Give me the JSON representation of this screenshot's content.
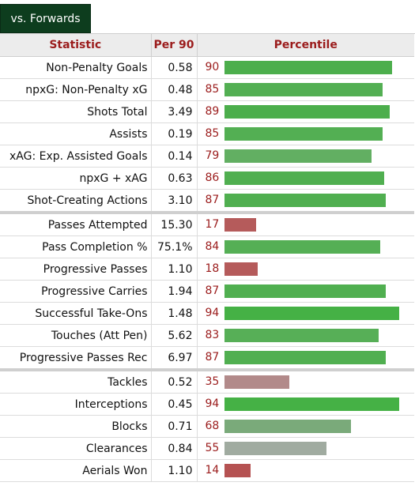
{
  "tabs": [
    {
      "label": "vs. Forwards",
      "active": true
    }
  ],
  "table": {
    "headers": {
      "statistic": "Statistic",
      "per90": "Per 90",
      "percentile": "Percentile"
    },
    "groups": [
      {
        "rows": [
          {
            "stat": "Non-Penalty Goals",
            "per90": "0.58",
            "percentile": 90,
            "color": "#4cae4c"
          },
          {
            "stat": "npxG: Non-Penalty xG",
            "per90": "0.48",
            "percentile": 85,
            "color": "#53af53"
          },
          {
            "stat": "Shots Total",
            "per90": "3.49",
            "percentile": 89,
            "color": "#4cae4c"
          },
          {
            "stat": "Assists",
            "per90": "0.19",
            "percentile": 85,
            "color": "#53af53"
          },
          {
            "stat": "xAG: Exp. Assisted Goals",
            "per90": "0.14",
            "percentile": 79,
            "color": "#62af62"
          },
          {
            "stat": "npxG + xAG",
            "per90": "0.63",
            "percentile": 86,
            "color": "#50af50"
          },
          {
            "stat": "Shot-Creating Actions",
            "per90": "3.10",
            "percentile": 87,
            "color": "#50af50"
          }
        ]
      },
      {
        "rows": [
          {
            "stat": "Passes Attempted",
            "per90": "15.30",
            "percentile": 17,
            "color": "#b55b5b"
          },
          {
            "stat": "Pass Completion %",
            "per90": "75.1%",
            "percentile": 84,
            "color": "#55af55"
          },
          {
            "stat": "Progressive Passes",
            "per90": "1.10",
            "percentile": 18,
            "color": "#b55b5b"
          },
          {
            "stat": "Progressive Carries",
            "per90": "1.94",
            "percentile": 87,
            "color": "#50af50"
          },
          {
            "stat": "Successful Take-Ons",
            "per90": "1.48",
            "percentile": 94,
            "color": "#45b145"
          },
          {
            "stat": "Touches (Att Pen)",
            "per90": "5.62",
            "percentile": 83,
            "color": "#57af57"
          },
          {
            "stat": "Progressive Passes Rec",
            "per90": "6.97",
            "percentile": 87,
            "color": "#50af50"
          }
        ]
      },
      {
        "rows": [
          {
            "stat": "Tackles",
            "per90": "0.52",
            "percentile": 35,
            "color": "#b28a8a"
          },
          {
            "stat": "Interceptions",
            "per90": "0.45",
            "percentile": 94,
            "color": "#45b145"
          },
          {
            "stat": "Blocks",
            "per90": "0.71",
            "percentile": 68,
            "color": "#7aaa7a"
          },
          {
            "stat": "Clearances",
            "per90": "0.84",
            "percentile": 55,
            "color": "#a0aba0"
          },
          {
            "stat": "Aerials Won",
            "per90": "1.10",
            "percentile": 14,
            "color": "#b55252"
          }
        ]
      }
    ]
  }
}
